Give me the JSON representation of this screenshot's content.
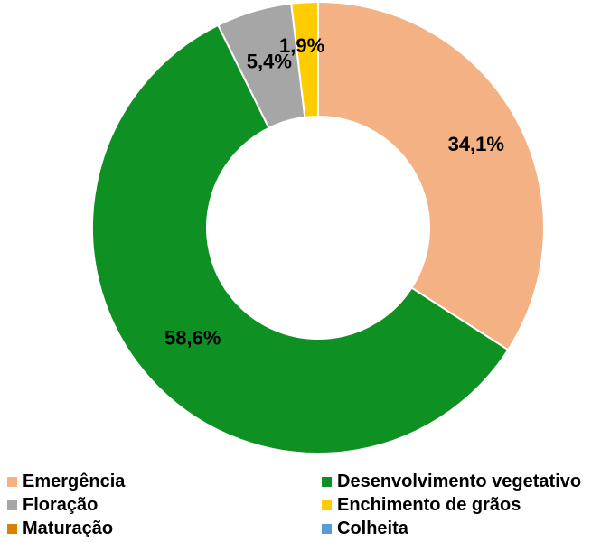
{
  "chart_data": {
    "type": "pie",
    "donut": true,
    "title": "",
    "categories": [
      "Emergência",
      "Desenvolvimento vegetativo",
      "Floração",
      "Enchimento de grãos",
      "Maturação",
      "Colheita"
    ],
    "values": [
      34.1,
      58.6,
      5.4,
      1.9,
      0,
      0
    ],
    "value_labels": [
      "34,1%",
      "58,6%",
      "5,4%",
      "1,9%",
      "",
      ""
    ],
    "unit": "%",
    "colors": [
      "#F4B183",
      "#0E9022",
      "#A6A6A6",
      "#FFCC00",
      "#D98200",
      "#5B9BD5"
    ],
    "legend_placement": "bottom",
    "slice_order": "clockwise from top"
  }
}
